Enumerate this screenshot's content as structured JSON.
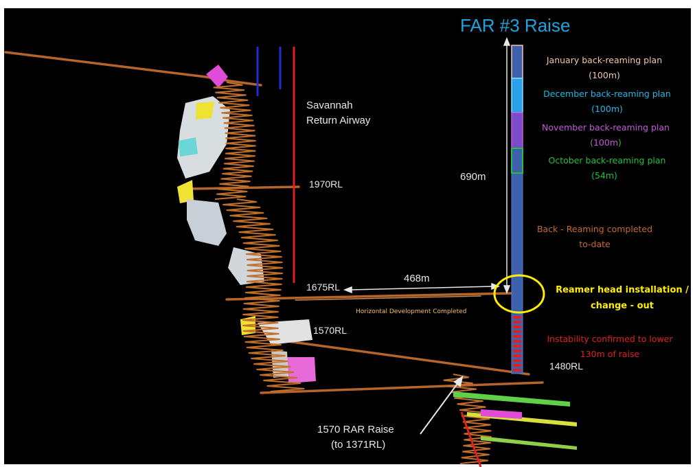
{
  "title": "FAR #3 Raise",
  "labels": {
    "savannah_line1": "Savannah",
    "savannah_line2": "Return Airway",
    "rl_1970": "1970RL",
    "rl_1675": "1675RL",
    "rl_1570": "1570RL",
    "rl_1480": "1480RL",
    "distance_468": "468m",
    "distance_690": "690m",
    "horizontal_dev": "Horizontal Development  Completed",
    "rar_line1": "1570 RAR Raise",
    "rar_line2": "(to 1371RL)"
  },
  "plans": {
    "january_line1": "January back-reaming plan",
    "january_line2": "(100m)",
    "december_line1": "December back-reaming plan",
    "december_line2": "(100m)",
    "november_line1": "November back-reaming plan",
    "november_line2": "(100m",
    "november_paren": ")",
    "october_line1": "October back-reaming plan",
    "october_line2": "(54m)"
  },
  "annotations": {
    "completed_line1": "Back - Reaming completed",
    "completed_line2": "to-date",
    "reamer_line1": "Reamer head installation /",
    "reamer_line2": "change - out",
    "instability_line1": "Instability confirmed to lower",
    "instability_line2": "130m of raise"
  },
  "colors": {
    "background": "#000000",
    "title": "#1fa3e0",
    "january": "#f2c9a8",
    "december": "#22b8e8",
    "november": "#c45ad8",
    "october": "#22c23a",
    "completed": "#c66a2c",
    "reamer": "#ffee00",
    "instability": "#e0201c",
    "drive": "#b5652a",
    "raise_body": "#3f61ad",
    "white_text": "#e8e8e8"
  }
}
